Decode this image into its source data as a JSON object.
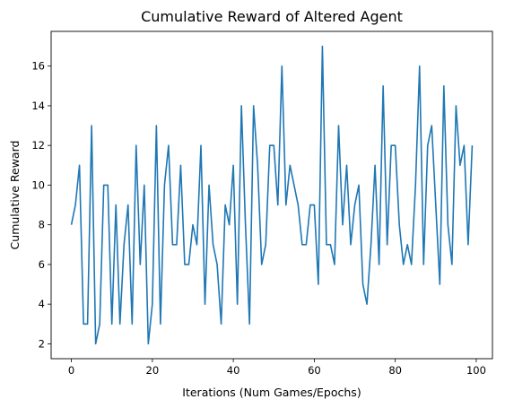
{
  "chart_data": {
    "type": "line",
    "title": "Cumulative Reward of Altered Agent",
    "xlabel": "Iterations (Num Games/Epochs)",
    "ylabel": "Cumulative Reward",
    "xlim": [
      -5,
      104
    ],
    "ylim": [
      1.25,
      17.75
    ],
    "xticks": [
      0,
      20,
      40,
      60,
      80,
      100
    ],
    "yticks": [
      2,
      4,
      6,
      8,
      10,
      12,
      14,
      16
    ],
    "grid": false,
    "legend": "none",
    "series": [
      {
        "color": "#1f77b4",
        "x": [
          0,
          1,
          2,
          3,
          4,
          5,
          6,
          7,
          8,
          9,
          10,
          11,
          12,
          13,
          14,
          15,
          16,
          17,
          18,
          19,
          20,
          21,
          22,
          23,
          24,
          25,
          26,
          27,
          28,
          29,
          30,
          31,
          32,
          33,
          34,
          35,
          36,
          37,
          38,
          39,
          40,
          41,
          42,
          43,
          44,
          45,
          46,
          47,
          48,
          49,
          50,
          51,
          52,
          53,
          54,
          55,
          56,
          57,
          58,
          59,
          60,
          61,
          62,
          63,
          64,
          65,
          66,
          67,
          68,
          69,
          70,
          71,
          72,
          73,
          74,
          75,
          76,
          77,
          78,
          79,
          80,
          81,
          82,
          83,
          84,
          85,
          86,
          87,
          88,
          89,
          90,
          91,
          92,
          93,
          94,
          95,
          96,
          97,
          98,
          99
        ],
        "y": [
          8,
          9,
          11,
          3,
          3,
          13,
          2,
          3,
          10,
          10,
          3,
          9,
          3,
          7,
          9,
          3,
          12,
          6,
          10,
          2,
          4,
          13,
          3,
          10,
          12,
          7,
          7,
          11,
          6,
          6,
          8,
          7,
          12,
          4,
          10,
          7,
          6,
          3,
          9,
          8,
          11,
          4,
          14,
          8,
          3,
          14,
          11,
          6,
          7,
          12,
          12,
          9,
          16,
          9,
          11,
          10,
          9,
          7,
          7,
          9,
          9,
          5,
          17,
          7,
          7,
          6,
          13,
          8,
          11,
          7,
          9,
          10,
          5,
          4,
          7,
          11,
          6,
          15,
          7,
          12,
          12,
          8,
          6,
          7,
          6,
          10,
          16,
          6,
          12,
          13,
          9,
          5,
          15,
          8,
          6,
          14,
          11,
          12,
          7,
          12
        ]
      }
    ]
  }
}
